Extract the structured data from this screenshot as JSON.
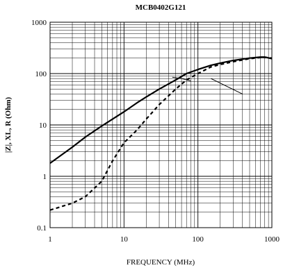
{
  "chart_data": {
    "type": "line",
    "title": "MCB0402G121",
    "xlabel": "FREQUENCY (MHz)",
    "ylabel": "|Z|, XL, R (Ohm)",
    "xscale": "log",
    "yscale": "log",
    "xlim": [
      1,
      1000
    ],
    "ylim": [
      0.1,
      1000
    ],
    "x_ticks": [
      "1",
      "10",
      "100",
      "1000"
    ],
    "y_ticks": [
      "0.1",
      "1",
      "10",
      "100",
      "1000"
    ],
    "grid": true,
    "legend": "none",
    "series": [
      {
        "style": "solid",
        "x": [
          1,
          2,
          3,
          5,
          7,
          10,
          15,
          20,
          30,
          50,
          70,
          100,
          150,
          200,
          300,
          500,
          700,
          800,
          1000
        ],
        "y": [
          1.8,
          3.7,
          5.8,
          9.5,
          13,
          18,
          27,
          35,
          50,
          75,
          100,
          120,
          145,
          160,
          180,
          200,
          210,
          210,
          195
        ]
      },
      {
        "style": "dashed",
        "x": [
          1,
          2,
          3,
          5,
          7,
          10,
          15,
          20,
          30,
          50,
          70,
          100,
          150,
          200,
          300,
          500,
          700,
          800,
          1000
        ],
        "y": [
          0.22,
          0.3,
          0.4,
          0.8,
          2,
          4.5,
          8,
          13,
          25,
          50,
          75,
          100,
          135,
          150,
          170,
          195,
          205,
          208,
          200
        ]
      },
      {
        "style": "solid-thin",
        "x": [
          45,
          60,
          80
        ],
        "y": [
          85,
          80,
          72
        ]
      }
    ],
    "annotations": [
      {
        "type": "leader-line",
        "from": [
          150,
          80
        ],
        "to": [
          400,
          40
        ]
      }
    ]
  }
}
